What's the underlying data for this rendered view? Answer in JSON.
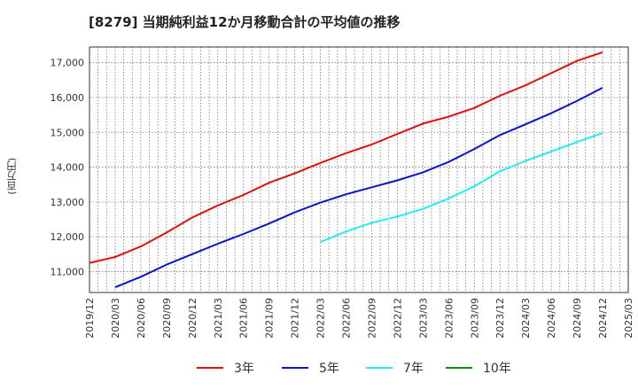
{
  "chart_data": {
    "type": "line",
    "title": "[8279]  当期純利益12か月移動合計の平均値の推移",
    "xlabel": "",
    "ylabel": "(百万円)",
    "x": [
      "2019/12",
      "2020/03",
      "2020/06",
      "2020/09",
      "2020/12",
      "2021/03",
      "2021/06",
      "2021/09",
      "2021/12",
      "2022/03",
      "2022/06",
      "2022/09",
      "2022/12",
      "2023/03",
      "2023/06",
      "2023/09",
      "2023/12",
      "2024/03",
      "2024/06",
      "2024/09",
      "2024/12",
      "2025/03"
    ],
    "ylim": [
      10400,
      17450
    ],
    "yticks": [
      11000,
      12000,
      13000,
      14000,
      15000,
      16000,
      17000
    ],
    "ytick_labels": [
      "11,000",
      "12,000",
      "13,000",
      "14,000",
      "15,000",
      "16,000",
      "17,000"
    ],
    "grid": true,
    "legend_position": "bottom",
    "series": [
      {
        "name": "3年",
        "color": "#dd1111",
        "values": [
          11250,
          11420,
          11720,
          12120,
          12550,
          12900,
          13200,
          13550,
          13820,
          14120,
          14400,
          14650,
          14950,
          15250,
          15450,
          15700,
          16050,
          16350,
          16700,
          17050,
          17300,
          null
        ]
      },
      {
        "name": "5年",
        "color": "#0a14c8",
        "values": [
          null,
          10550,
          10850,
          11200,
          11500,
          11800,
          12080,
          12380,
          12700,
          12980,
          13220,
          13420,
          13620,
          13850,
          14150,
          14520,
          14920,
          15230,
          15550,
          15900,
          16280,
          null
        ]
      },
      {
        "name": "7年",
        "color": "#22eeee",
        "values": [
          null,
          null,
          null,
          null,
          null,
          null,
          null,
          null,
          null,
          11850,
          12150,
          12400,
          12580,
          12800,
          13100,
          13450,
          13880,
          14180,
          14450,
          14720,
          14980,
          null
        ]
      },
      {
        "name": "10年",
        "color": "#118811",
        "values": [
          null,
          null,
          null,
          null,
          null,
          null,
          null,
          null,
          null,
          null,
          null,
          null,
          null,
          null,
          null,
          null,
          null,
          null,
          null,
          null,
          null,
          null
        ]
      }
    ]
  }
}
